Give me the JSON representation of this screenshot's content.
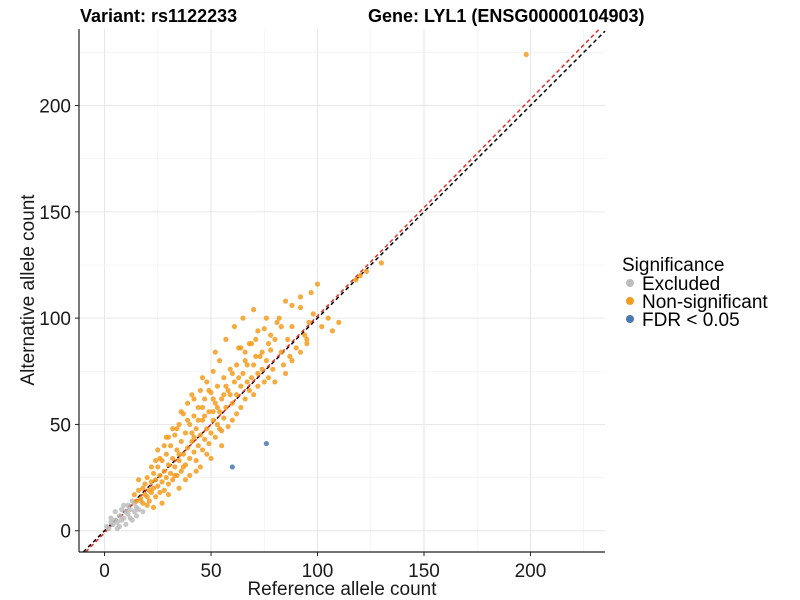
{
  "chart_data": {
    "type": "scatter",
    "title_left": "Variant: rs1122233",
    "title_right": "Gene: LYL1 (ENSG00000104903)",
    "xlabel": "Reference allele count",
    "ylabel": "Alternative allele count",
    "xlim": [
      -12,
      235
    ],
    "ylim": [
      -10,
      236
    ],
    "xticks": [
      0,
      50,
      100,
      150,
      200
    ],
    "yticks": [
      0,
      50,
      100,
      150,
      200
    ],
    "grid": true,
    "legend": {
      "title": "Significance",
      "placement": "right",
      "entries": [
        {
          "label": "Excluded",
          "color": "#bdbdbd"
        },
        {
          "label": "Non-significant",
          "color": "#f39c1e"
        },
        {
          "label": "FDR < 0.05",
          "color": "#4a78b0"
        }
      ]
    },
    "reference_lines": [
      {
        "name": "identity",
        "color": "#000000",
        "style": "dashed",
        "slope": 1.0,
        "intercept": 0
      },
      {
        "name": "fit",
        "color": "#e0302a",
        "style": "dashed",
        "slope": 1.02,
        "intercept": -1
      }
    ],
    "series": [
      {
        "name": "Excluded",
        "color": "#bdbdbd",
        "points": [
          [
            1,
            2
          ],
          [
            2,
            1
          ],
          [
            3,
            4
          ],
          [
            4,
            3
          ],
          [
            3,
            6
          ],
          [
            5,
            5
          ],
          [
            5,
            9
          ],
          [
            6,
            4
          ],
          [
            7,
            7
          ],
          [
            7,
            2
          ],
          [
            8,
            10
          ],
          [
            9,
            6
          ],
          [
            10,
            9
          ],
          [
            10,
            3
          ],
          [
            11,
            8
          ],
          [
            11,
            12
          ],
          [
            12,
            6
          ],
          [
            12,
            10
          ],
          [
            13,
            5
          ],
          [
            14,
            9
          ],
          [
            14,
            13
          ],
          [
            15,
            7
          ],
          [
            15,
            11
          ],
          [
            16,
            10
          ],
          [
            17,
            14
          ],
          [
            18,
            9
          ],
          [
            6,
            1
          ],
          [
            9,
            12
          ],
          [
            13,
            14
          ],
          [
            8,
            5
          ]
        ]
      },
      {
        "name": "Non-significant",
        "color": "#f39c1e",
        "points": [
          [
            14,
            17
          ],
          [
            15,
            14
          ],
          [
            16,
            19
          ],
          [
            17,
            15
          ],
          [
            18,
            20
          ],
          [
            18,
            13
          ],
          [
            19,
            17
          ],
          [
            19,
            22
          ],
          [
            20,
            16
          ],
          [
            20,
            25
          ],
          [
            21,
            19
          ],
          [
            21,
            14
          ],
          [
            22,
            23
          ],
          [
            22,
            18
          ],
          [
            23,
            27
          ],
          [
            23,
            20
          ],
          [
            24,
            16
          ],
          [
            24,
            24
          ],
          [
            25,
            30
          ],
          [
            25,
            21
          ],
          [
            26,
            26
          ],
          [
            26,
            18
          ],
          [
            27,
            33
          ],
          [
            27,
            23
          ],
          [
            28,
            28
          ],
          [
            28,
            19
          ],
          [
            29,
            36
          ],
          [
            29,
            25
          ],
          [
            30,
            31
          ],
          [
            30,
            22
          ],
          [
            31,
            40
          ],
          [
            31,
            27
          ],
          [
            32,
            34
          ],
          [
            32,
            24
          ],
          [
            33,
            45
          ],
          [
            33,
            30
          ],
          [
            34,
            38
          ],
          [
            34,
            26
          ],
          [
            35,
            50
          ],
          [
            35,
            33
          ],
          [
            36,
            42
          ],
          [
            36,
            28
          ],
          [
            37,
            55
          ],
          [
            37,
            36
          ],
          [
            38,
            46
          ],
          [
            38,
            31
          ],
          [
            39,
            60
          ],
          [
            39,
            39
          ],
          [
            40,
            50
          ],
          [
            40,
            34
          ],
          [
            41,
            64
          ],
          [
            41,
            42
          ],
          [
            42,
            54
          ],
          [
            42,
            37
          ],
          [
            43,
            48
          ],
          [
            43,
            33
          ],
          [
            44,
            58
          ],
          [
            44,
            40
          ],
          [
            45,
            66
          ],
          [
            45,
            45
          ],
          [
            46,
            52
          ],
          [
            46,
            38
          ],
          [
            47,
            62
          ],
          [
            47,
            43
          ],
          [
            48,
            70
          ],
          [
            48,
            48
          ],
          [
            49,
            56
          ],
          [
            49,
            41
          ],
          [
            50,
            65
          ],
          [
            50,
            46
          ],
          [
            51,
            75
          ],
          [
            51,
            52
          ],
          [
            52,
            60
          ],
          [
            52,
            44
          ],
          [
            53,
            68
          ],
          [
            53,
            50
          ],
          [
            54,
            80
          ],
          [
            54,
            56
          ],
          [
            55,
            62
          ],
          [
            55,
            47
          ],
          [
            56,
            72
          ],
          [
            56,
            53
          ],
          [
            57,
            58
          ],
          [
            58,
            66
          ],
          [
            58,
            49
          ],
          [
            59,
            76
          ],
          [
            60,
            60
          ],
          [
            60,
            52
          ],
          [
            61,
            70
          ],
          [
            62,
            64
          ],
          [
            62,
            55
          ],
          [
            63,
            86
          ],
          [
            64,
            68
          ],
          [
            64,
            58
          ],
          [
            65,
            74
          ],
          [
            66,
            62
          ],
          [
            66,
            80
          ],
          [
            67,
            70
          ],
          [
            68,
            66
          ],
          [
            68,
            88
          ],
          [
            69,
            72
          ],
          [
            70,
            78
          ],
          [
            70,
            64
          ],
          [
            71,
            90
          ],
          [
            72,
            74
          ],
          [
            72,
            68
          ],
          [
            73,
            82
          ],
          [
            74,
            76
          ],
          [
            75,
            70
          ],
          [
            75,
            95
          ],
          [
            76,
            80
          ],
          [
            77,
            72
          ],
          [
            78,
            85
          ],
          [
            79,
            76
          ],
          [
            80,
            90
          ],
          [
            80,
            70
          ],
          [
            82,
            100
          ],
          [
            83,
            84
          ],
          [
            84,
            78
          ],
          [
            85,
            108
          ],
          [
            86,
            90
          ],
          [
            87,
            82
          ],
          [
            88,
            96
          ],
          [
            90,
            86
          ],
          [
            92,
            105
          ],
          [
            94,
            92
          ],
          [
            95,
            88
          ],
          [
            96,
            98
          ],
          [
            98,
            102
          ],
          [
            100,
            116
          ],
          [
            102,
            96
          ],
          [
            105,
            100
          ],
          [
            107,
            94
          ],
          [
            110,
            98
          ],
          [
            118,
            118
          ],
          [
            120,
            120
          ],
          [
            123,
            122
          ],
          [
            130,
            126
          ],
          [
            198,
            224
          ],
          [
            23,
            11
          ],
          [
            27,
            13
          ],
          [
            30,
            17
          ],
          [
            35,
            20
          ],
          [
            40,
            26
          ],
          [
            45,
            30
          ],
          [
            50,
            34
          ],
          [
            55,
            40
          ],
          [
            28,
            40
          ],
          [
            33,
            26
          ],
          [
            38,
            24
          ],
          [
            43,
            28
          ],
          [
            48,
            36
          ],
          [
            32,
            48
          ],
          [
            36,
            56
          ],
          [
            42,
            62
          ],
          [
            46,
            72
          ],
          [
            52,
            84
          ],
          [
            57,
            90
          ],
          [
            61,
            96
          ],
          [
            65,
            100
          ],
          [
            70,
            104
          ],
          [
            22,
            30
          ],
          [
            26,
            34
          ],
          [
            29,
            44
          ],
          [
            44,
            52
          ],
          [
            53,
            58
          ],
          [
            59,
            64
          ],
          [
            63,
            72
          ],
          [
            67,
            78
          ],
          [
            74,
            84
          ],
          [
            78,
            92
          ],
          [
            81,
            98
          ],
          [
            88,
            106
          ],
          [
            92,
            110
          ],
          [
            97,
            112
          ],
          [
            16,
            24
          ],
          [
            20,
            12
          ],
          [
            24,
            33
          ],
          [
            34,
            48
          ],
          [
            37,
            30
          ],
          [
            41,
            46
          ],
          [
            47,
            54
          ],
          [
            49,
            66
          ],
          [
            51,
            56
          ],
          [
            54,
            48
          ],
          [
            57,
            68
          ],
          [
            60,
            74
          ],
          [
            62,
            78
          ],
          [
            66,
            84
          ],
          [
            69,
            88
          ],
          [
            72,
            94
          ],
          [
            76,
            100
          ],
          [
            83,
            96
          ],
          [
            85,
            74
          ],
          [
            88,
            80
          ],
          [
            92,
            84
          ],
          [
            95,
            90
          ],
          [
            25,
            38
          ],
          [
            30,
            44
          ],
          [
            35,
            36
          ],
          [
            39,
            52
          ],
          [
            42,
            44
          ],
          [
            46,
            58
          ],
          [
            51,
            62
          ],
          [
            56,
            64
          ],
          [
            64,
            86
          ],
          [
            71,
            82
          ],
          [
            77,
            88
          ]
        ]
      },
      {
        "name": "FDR < 0.05",
        "color": "#4a78b0",
        "points": [
          [
            60,
            30
          ],
          [
            76,
            41
          ]
        ]
      }
    ]
  }
}
